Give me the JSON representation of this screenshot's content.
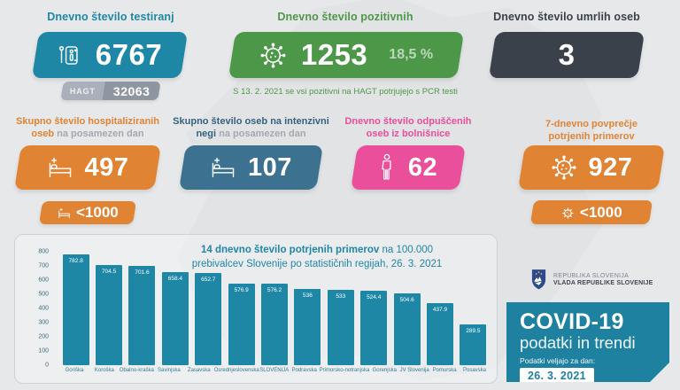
{
  "colors": {
    "background": "#e7e8ea",
    "teal": "#1e87a6",
    "green": "#4d9748",
    "dark": "#3a414a",
    "orange": "#e08434",
    "steel_blue": "#3d7190",
    "pink": "#e94f9b",
    "bar": "#1e87a6",
    "badge_gray": "#9aa2ab",
    "covid_box": "#1e81a0"
  },
  "cards": {
    "testing": {
      "title": "Dnevno število testiranj",
      "value": "6767",
      "icon": "test-kit-icon",
      "hagt_label": "HAGT",
      "hagt_value": "32063"
    },
    "positive": {
      "title": "Dnevno število pozitivnih",
      "value": "1253",
      "percent": "18,5 %",
      "icon": "virus-icon",
      "note": "S 13. 2. 2021 se vsi pozitivni na HAGT potrjujejo s PCR testi"
    },
    "deaths": {
      "title": "Dnevno število umrlih oseb",
      "value": "3"
    },
    "hospitalized": {
      "title_main": "Skupno število hospitaliziranih oseb",
      "title_sub": " na posamezen dan",
      "value": "497",
      "badge": "<1000",
      "icon": "hospital-bed-icon"
    },
    "icu": {
      "title_main": "Skupno število oseb na intenzivni negi",
      "title_sub": " na posamezen dan",
      "value": "107",
      "icon": "hospital-bed-icon"
    },
    "discharged": {
      "title_main": "Dnevno število odpuščenih oseb iz bolnišnice",
      "value": "62",
      "icon": "person-icon"
    },
    "avg7": {
      "title_main": "7-dnevno povprečje potrjenih primerov",
      "value": "927",
      "badge": "<1000",
      "icon": "virus-icon"
    }
  },
  "chart_data": {
    "type": "bar",
    "title_bold": "14 dnevno število potrjenih primerov",
    "title_normal": " na 100.000",
    "title_line2": "prebivalcev Slovenije po statističnih regijah, 26. 3. 2021",
    "categories": [
      "Goriška",
      "Koroška",
      "Obalno-kraška",
      "Savinjska",
      "Zasavska",
      "Osrednjeslovenska",
      "SLOVENIJA",
      "Podravska",
      "Primorsko-notranjska",
      "Gorenjska",
      "JV Slovenija",
      "Pomurska",
      "Posavska"
    ],
    "values": [
      782.8,
      704.5,
      701.6,
      658.4,
      652.7,
      576.9,
      576.2,
      536,
      533,
      524.4,
      504.6,
      437.9,
      289.5
    ],
    "ylim": [
      0,
      800
    ],
    "yticks": [
      800,
      700,
      600,
      500,
      400,
      300,
      200,
      100,
      0
    ],
    "bar_color": "#1e87a6",
    "grid": false,
    "legend": false
  },
  "footer": {
    "gov_line1": "REPUBLIKA SLOVENIJA",
    "gov_line2": "VLADA REPUBLIKE SLOVENIJE",
    "gov_icon": "coat-of-arms-icon",
    "covid_title": "COVID-19",
    "covid_subtitle": "podatki in trendi",
    "covid_note": "Podatki veljajo za dan:",
    "covid_date": "26. 3. 2021"
  }
}
